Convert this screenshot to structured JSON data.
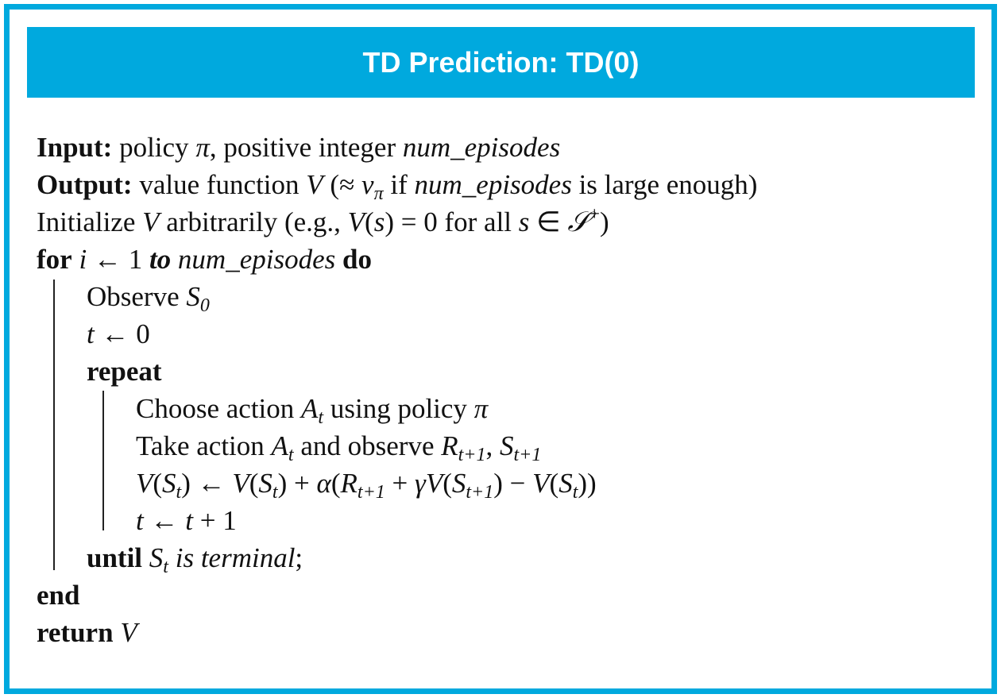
{
  "title": "TD Prediction: TD(0)",
  "colors": {
    "accent": "#00a9de"
  },
  "lines": [
    {
      "indent": 0,
      "seg": [
        {
          "s": "b",
          "t": "Input:"
        },
        {
          "s": "r",
          "t": " policy "
        },
        {
          "s": "i",
          "t": "π"
        },
        {
          "s": "r",
          "t": ", positive integer "
        },
        {
          "s": "i",
          "t": "num_episodes"
        }
      ]
    },
    {
      "indent": 0,
      "seg": [
        {
          "s": "b",
          "t": "Output:"
        },
        {
          "s": "r",
          "t": " value function "
        },
        {
          "s": "i",
          "t": "V"
        },
        {
          "s": "r",
          "t": " (≈ "
        },
        {
          "s": "i",
          "t": "v"
        },
        {
          "s": "sub",
          "t": "π"
        },
        {
          "s": "r",
          "t": " if "
        },
        {
          "s": "i",
          "t": "num_episodes"
        },
        {
          "s": "r",
          "t": " is large enough)"
        }
      ]
    },
    {
      "indent": 0,
      "seg": [
        {
          "s": "r",
          "t": "Initialize "
        },
        {
          "s": "i",
          "t": "V"
        },
        {
          "s": "r",
          "t": " arbitrarily (e.g., "
        },
        {
          "s": "i",
          "t": "V"
        },
        {
          "s": "r",
          "t": "("
        },
        {
          "s": "i",
          "t": "s"
        },
        {
          "s": "r",
          "t": ") = 0 for all "
        },
        {
          "s": "i",
          "t": "s"
        },
        {
          "s": "r",
          "t": " ∈ "
        },
        {
          "s": "i",
          "t": "𝒮"
        },
        {
          "s": "sup",
          "t": "+"
        },
        {
          "s": "r",
          "t": ")"
        }
      ]
    },
    {
      "indent": 0,
      "seg": [
        {
          "s": "b",
          "t": "for"
        },
        {
          "s": "r",
          "t": " "
        },
        {
          "s": "i",
          "t": "i"
        },
        {
          "s": "r",
          "t": " ← 1 "
        },
        {
          "s": "bi",
          "t": "to"
        },
        {
          "s": "r",
          "t": " "
        },
        {
          "s": "i",
          "t": "num_episodes"
        },
        {
          "s": "r",
          "t": " "
        },
        {
          "s": "b",
          "t": "do"
        }
      ]
    },
    {
      "indent": 1,
      "seg": [
        {
          "s": "r",
          "t": "Observe "
        },
        {
          "s": "i",
          "t": "S"
        },
        {
          "s": "sub",
          "t": "0"
        }
      ]
    },
    {
      "indent": 1,
      "seg": [
        {
          "s": "i",
          "t": "t"
        },
        {
          "s": "r",
          "t": " ← 0"
        }
      ]
    },
    {
      "indent": 1,
      "seg": [
        {
          "s": "b",
          "t": "repeat"
        }
      ]
    },
    {
      "indent": 2,
      "seg": [
        {
          "s": "r",
          "t": "Choose action "
        },
        {
          "s": "i",
          "t": "A"
        },
        {
          "s": "sub",
          "t": "t"
        },
        {
          "s": "r",
          "t": " using policy "
        },
        {
          "s": "i",
          "t": "π"
        }
      ]
    },
    {
      "indent": 2,
      "seg": [
        {
          "s": "r",
          "t": "Take action "
        },
        {
          "s": "i",
          "t": "A"
        },
        {
          "s": "sub",
          "t": "t"
        },
        {
          "s": "r",
          "t": " and observe "
        },
        {
          "s": "i",
          "t": "R"
        },
        {
          "s": "sub",
          "t": "t+1"
        },
        {
          "s": "r",
          "t": ", "
        },
        {
          "s": "i",
          "t": "S"
        },
        {
          "s": "sub",
          "t": "t+1"
        }
      ]
    },
    {
      "indent": 2,
      "seg": [
        {
          "s": "i",
          "t": "V"
        },
        {
          "s": "r",
          "t": "("
        },
        {
          "s": "i",
          "t": "S"
        },
        {
          "s": "sub",
          "t": "t"
        },
        {
          "s": "r",
          "t": ") ← "
        },
        {
          "s": "i",
          "t": "V"
        },
        {
          "s": "r",
          "t": "("
        },
        {
          "s": "i",
          "t": "S"
        },
        {
          "s": "sub",
          "t": "t"
        },
        {
          "s": "r",
          "t": ") + "
        },
        {
          "s": "i",
          "t": "α"
        },
        {
          "s": "r",
          "t": "("
        },
        {
          "s": "i",
          "t": "R"
        },
        {
          "s": "sub",
          "t": "t+1"
        },
        {
          "s": "r",
          "t": " + "
        },
        {
          "s": "i",
          "t": "γV"
        },
        {
          "s": "r",
          "t": "("
        },
        {
          "s": "i",
          "t": "S"
        },
        {
          "s": "sub",
          "t": "t+1"
        },
        {
          "s": "r",
          "t": ") − "
        },
        {
          "s": "i",
          "t": "V"
        },
        {
          "s": "r",
          "t": "("
        },
        {
          "s": "i",
          "t": "S"
        },
        {
          "s": "sub",
          "t": "t"
        },
        {
          "s": "r",
          "t": "))"
        }
      ]
    },
    {
      "indent": 2,
      "seg": [
        {
          "s": "i",
          "t": "t"
        },
        {
          "s": "r",
          "t": " ← "
        },
        {
          "s": "i",
          "t": "t"
        },
        {
          "s": "r",
          "t": " + 1"
        }
      ]
    },
    {
      "indent": 1,
      "seg": [
        {
          "s": "b",
          "t": "until"
        },
        {
          "s": "r",
          "t": " "
        },
        {
          "s": "i",
          "t": "S"
        },
        {
          "s": "sub",
          "t": "t"
        },
        {
          "s": "r",
          "t": " "
        },
        {
          "s": "i",
          "t": "is terminal"
        },
        {
          "s": "r",
          "t": ";"
        }
      ]
    },
    {
      "indent": 0,
      "seg": [
        {
          "s": "b",
          "t": "end"
        }
      ]
    },
    {
      "indent": 0,
      "seg": [
        {
          "s": "b",
          "t": "return"
        },
        {
          "s": "r",
          "t": " "
        },
        {
          "s": "i",
          "t": "V"
        }
      ]
    }
  ]
}
